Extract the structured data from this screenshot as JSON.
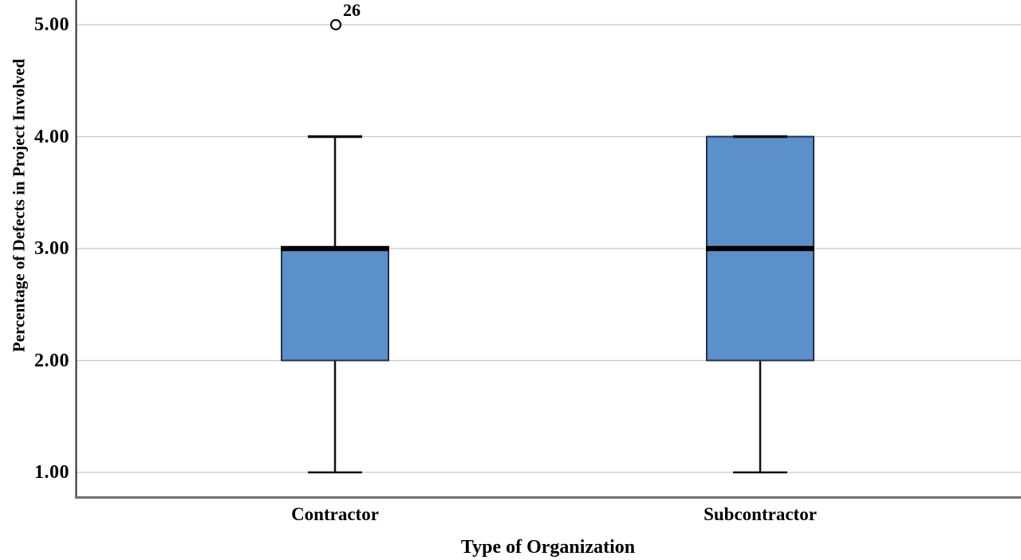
{
  "chart_data": {
    "type": "boxplot",
    "title": "",
    "xlabel": "Type of Organization",
    "ylabel": "Percentage of Defects in Project Involved",
    "ylim": [
      0.78,
      5.22
    ],
    "grid": "horizontal",
    "legend": false,
    "yticks": [
      {
        "value": 1,
        "label": "1.00"
      },
      {
        "value": 2,
        "label": "2.00"
      },
      {
        "value": 3,
        "label": "3.00"
      },
      {
        "value": 4,
        "label": "4.00"
      },
      {
        "value": 5,
        "label": "5.00"
      }
    ],
    "groups": [
      {
        "category": "Contractor",
        "whisker_low": 1.0,
        "q1": 2.0,
        "median": 3.0,
        "q3": 3.0,
        "whisker_high": 4.0,
        "outliers": [
          {
            "value": 5.0,
            "label": "26"
          }
        ]
      },
      {
        "category": "Subcontractor",
        "whisker_low": 1.0,
        "q1": 2.0,
        "median": 3.0,
        "q3": 4.0,
        "whisker_high": 4.0,
        "outliers": []
      }
    ],
    "colors": {
      "box_fill": "#5b90ca",
      "box_border": "#22304f",
      "median": "#000000",
      "whisker": "#111111",
      "outlier_stroke": "#111111",
      "outlier_fill": "#ffffff",
      "gridline": "#c6c6c6",
      "y_axis_line": "#2a2a2a",
      "x_axis_line": "#707070",
      "text": "#000000"
    }
  }
}
